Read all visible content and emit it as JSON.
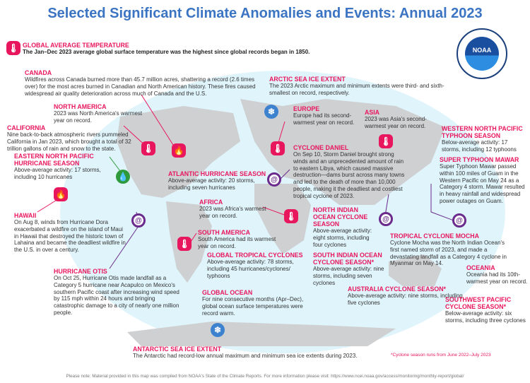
{
  "title": "Selected Significant Climate Anomalies and Events: Annual 2023",
  "logo_text": "NOAA",
  "callouts": [
    {
      "id": "global-temp",
      "heading": "Global Average Temperature",
      "text": "The Jan–Dec 2023 average global surface temperature was the highest since global records began in 1850."
    },
    {
      "id": "canada",
      "heading": "Canada",
      "text": "Wildfires across Canada burned more than 45.7 million acres, shattering a record (2.6 times over) for the most acres burned in Canadian and North American history. These fires caused widespread air quality deterioration across much of Canada and the U.S."
    },
    {
      "id": "north-america",
      "heading": "North America",
      "text": "2023 was North America's warmest year on record."
    },
    {
      "id": "california",
      "heading": "California",
      "text": "Nine back-to-back atmospheric rivers pummeled California in Jan 2023, which brought a total of 32 trillion gallons of rain and snow to the state."
    },
    {
      "id": "enp-hurricane",
      "heading": "Eastern North Pacific Hurricane Season",
      "text": "Above-average activity: 17 storms, including 10 hurricanes"
    },
    {
      "id": "hawaii",
      "heading": "Hawaii",
      "text": "On Aug 8, winds from Hurricane Dora exacerbated a wildfire on the island of Maui in Hawaii that destroyed the historic town of Lahaina and became the deadliest wildfire in the U.S. in over a century."
    },
    {
      "id": "otis",
      "heading": "Hurricane Otis",
      "text": "On Oct 25, Hurricane Otis made landfall as a Category 5 hurricane near Acapulco on Mexico's southern Pacific coast after increasing wind speed by 115 mph within 24 hours and bringing catastrophic damage to a city of nearly one million people."
    },
    {
      "id": "atlantic",
      "heading": "Atlantic Hurricane Season",
      "text": "Above-average activity: 20 storms, including seven hurricanes"
    },
    {
      "id": "africa",
      "heading": "Africa",
      "text": "2023 was Africa's warmest year on record."
    },
    {
      "id": "south-america",
      "heading": "South America",
      "text": "South America had its warmest year on record."
    },
    {
      "id": "global-tropical",
      "heading": "Global Tropical Cyclones",
      "text": "Above-average activity: 78 storms, including 45 hurricanes/cyclones/ typhoons"
    },
    {
      "id": "global-ocean",
      "heading": "Global Ocean",
      "text": "For nine consecutive months (Apr–Dec), global ocean surface temperatures were record warm."
    },
    {
      "id": "antarctic",
      "heading": "Antarctic Sea Ice Extent",
      "text": "The Antarctic had record-low annual maximum and minimum sea ice extents during 2023."
    },
    {
      "id": "arctic",
      "heading": "Arctic Sea Ice Extent",
      "text": "The 2023 Arctic maximum and minimum extents were third- and sixth-smallest on record, respectively."
    },
    {
      "id": "europe",
      "heading": "Europe",
      "text": "Europe had its second-warmest year on record."
    },
    {
      "id": "asia",
      "heading": "Asia",
      "text": "2023 was Asia's second-warmest year on record."
    },
    {
      "id": "wnp-typhoon",
      "heading": "Western North Pacific Typhoon Season",
      "text": "Below-average activity: 17 storms, including 12 typhoons"
    },
    {
      "id": "mawar",
      "heading": "Super Typhoon Mawar",
      "text": "Super Typhoon Mawar passed within 100 miles of Guam in the Western Pacific on May 24 as a Category 4 storm. Mawar resulted in heavy rainfall and widespread power outages on Guam."
    },
    {
      "id": "daniel",
      "heading": "Cyclone Daniel",
      "text": "On Sep 10, Storm Daniel brought strong winds and an unprecedented amount of rain to eastern Libya, which caused massive destruction—dams burst across many towns and led to the death of more than 10,000 people, making it the deadliest and costliest tropical cyclone of 2023."
    },
    {
      "id": "north-indian",
      "heading": "North Indian Ocean Cyclone Season",
      "text": "Above-average activity: eight storms, including four cyclones"
    },
    {
      "id": "mocha",
      "heading": "Tropical Cyclone Mocha",
      "text": "Cyclone Mocha was the North Indian Ocean's first named storm of 2023, and made a devastating landfall as a Category 4 cyclone in Myanmar on May 14."
    },
    {
      "id": "south-indian",
      "heading": "South Indian Ocean Cyclone Season*",
      "text": "Above-average activity: nine storms, including seven cyclones"
    },
    {
      "id": "australia",
      "heading": "Australia Cyclone Season*",
      "text": "Above-average activity: nine storms, including five cyclones"
    },
    {
      "id": "oceania",
      "heading": "Oceania",
      "text": "Oceania had its 10th-warmest year on record."
    },
    {
      "id": "sw-pacific",
      "heading": "Southwest Pacific Cyclone Season*",
      "text": "Below-average activity: six storms, including three cyclones"
    }
  ],
  "icons": [
    {
      "id": "global-temp",
      "type": "thermometer-icon"
    },
    {
      "id": "north-america",
      "type": "thermometer-icon"
    },
    {
      "id": "canada",
      "type": "fire-icon"
    },
    {
      "id": "california",
      "type": "rain-icon"
    },
    {
      "id": "hawaii",
      "type": "fire-icon"
    },
    {
      "id": "otis",
      "type": "hurricane-icon"
    },
    {
      "id": "arctic",
      "type": "sea-ice-icon"
    },
    {
      "id": "europe",
      "type": "thermometer-icon"
    },
    {
      "id": "asia",
      "type": "thermometer-icon"
    },
    {
      "id": "daniel",
      "type": "hurricane-icon"
    },
    {
      "id": "africa",
      "type": "thermometer-icon"
    },
    {
      "id": "south-america",
      "type": "thermometer-icon"
    },
    {
      "id": "north-indian",
      "type": "hurricane-icon"
    },
    {
      "id": "mawar",
      "type": "hurricane-icon"
    },
    {
      "id": "antarctic",
      "type": "sea-ice-icon"
    }
  ],
  "footnote": "*Cyclone season runs from June 2022–July 2023",
  "note": "Please note: Material provided in this map was compiled from NOAA's State of the Climate Reports. For more information please visit: https://www.ncei.noaa.gov/access/monitoring/monthly-report/global/",
  "colors": {
    "title": "#3b74c2",
    "heading": "#e8175d",
    "ocean": "#dff4fb",
    "land": "#cfd0d2"
  }
}
